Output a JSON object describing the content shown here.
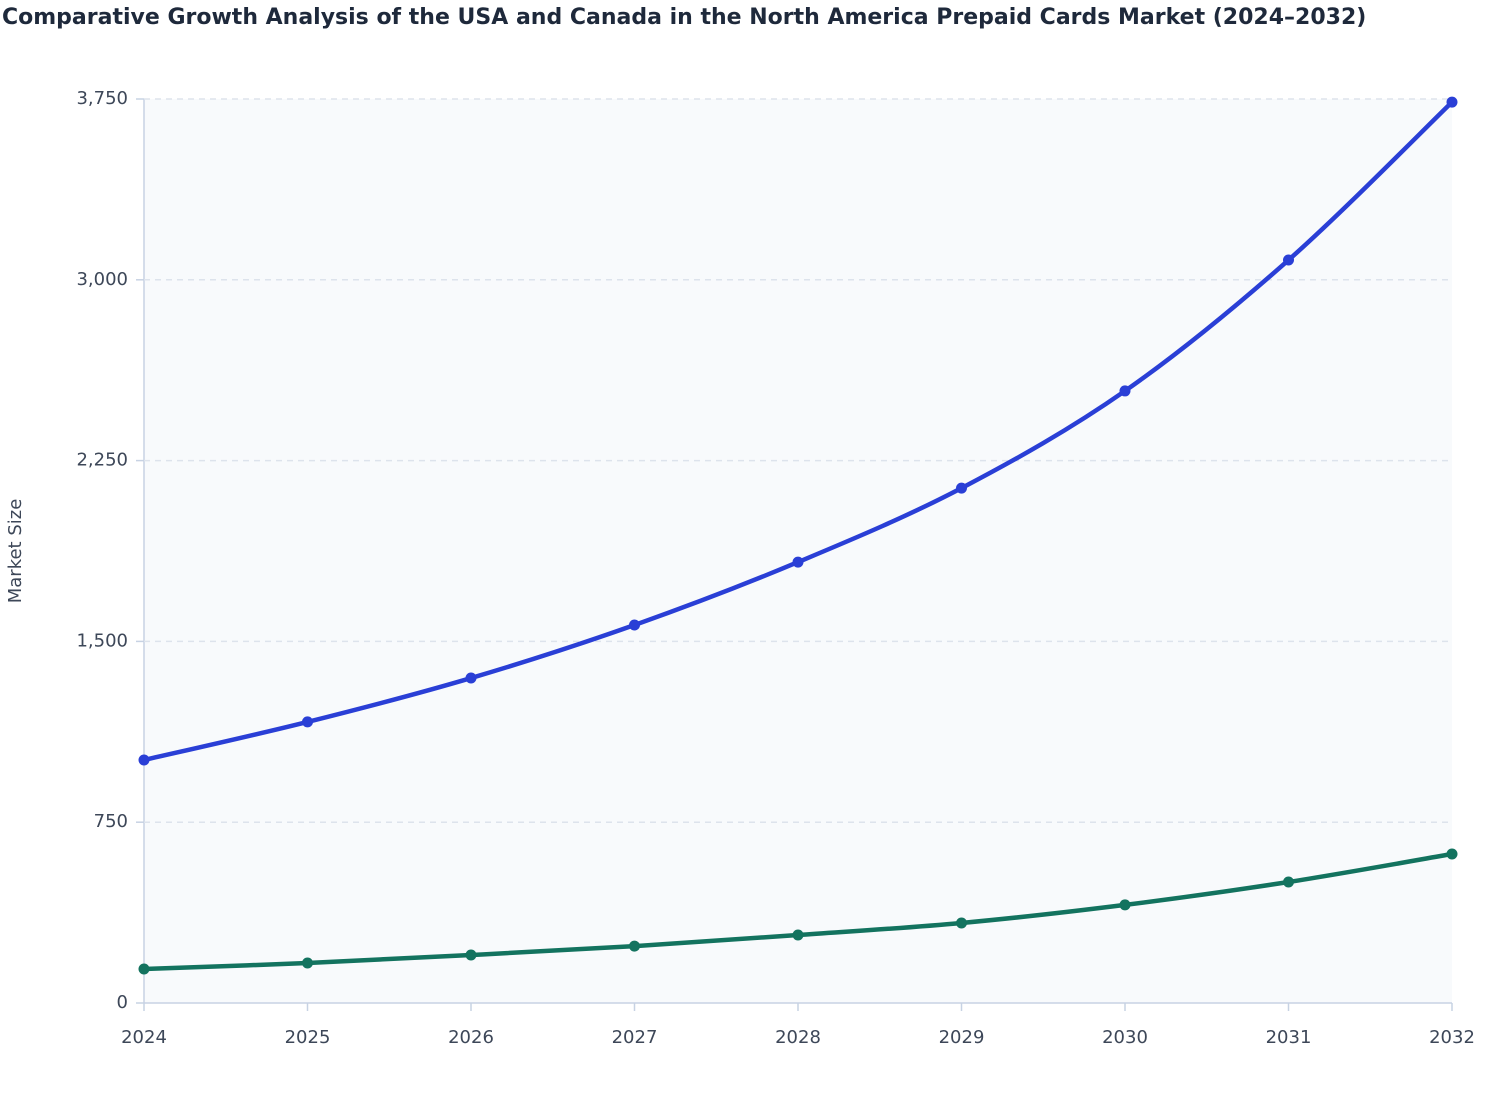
{
  "chart_data": {
    "type": "line",
    "title": "Comparative Growth Analysis of the USA and Canada in the North America Prepaid Cards Market (2024–2032)",
    "y_label": "Market Size",
    "categories": [
      "2024",
      "2025",
      "2026",
      "2027",
      "2028",
      "2029",
      "2030",
      "2031",
      "2032"
    ],
    "series": [
      {
        "color": "#2a3fd6",
        "values": [
          1008,
          1166,
          1348,
          1568,
          1829,
          2136,
          2539,
          3082,
          3737
        ]
      },
      {
        "color": "#13735f",
        "values": [
          141,
          166,
          199,
          236,
          282,
          332,
          407,
          502,
          618
        ]
      }
    ],
    "ylim": [
      0,
      3750
    ],
    "yticks": [
      0,
      750,
      {
        "value": 1500,
        "label": "1,500"
      },
      {
        "value": 2250,
        "label": "2,250"
      },
      {
        "value": 3000,
        "label": "3,000"
      },
      {
        "value": 3750,
        "label": "3,750"
      }
    ],
    "grid": true
  }
}
